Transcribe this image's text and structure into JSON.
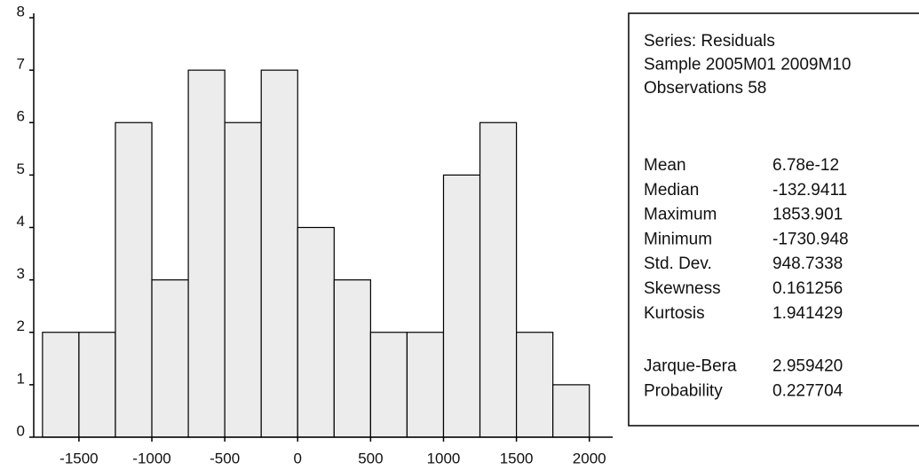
{
  "chart_data": {
    "type": "histogram",
    "bins": [
      -1750,
      -1500,
      -1250,
      -1000,
      -750,
      -500,
      -250,
      0,
      250,
      500,
      750,
      1000,
      1250,
      1500,
      1750,
      2000
    ],
    "values": [
      2,
      2,
      6,
      3,
      7,
      6,
      7,
      4,
      3,
      2,
      2,
      5,
      6,
      2,
      1
    ],
    "color": "#ececec",
    "xlim": [
      -1810,
      2160
    ],
    "xticks": [
      -1500,
      -1000,
      -500,
      0,
      500,
      1000,
      1500,
      2000
    ],
    "ylim": [
      0,
      8
    ],
    "yticks": [
      0,
      1,
      2,
      3,
      4,
      5,
      6,
      7,
      8
    ],
    "stats_header": [
      "Series: Residuals",
      "Sample 2005M01 2009M10",
      "Observations 58"
    ],
    "stats": [
      [
        [
          "Mean",
          "6.78e-12"
        ],
        [
          "Median",
          "-132.9411"
        ],
        [
          "Maximum",
          "1853.901"
        ],
        [
          "Minimum",
          "-1730.948"
        ],
        [
          "Std. Dev.",
          "948.7338"
        ],
        [
          "Skewness",
          "0.161256"
        ],
        [
          "Kurtosis",
          "1.941429"
        ]
      ],
      [
        [
          "Jarque-Bera",
          "2.959420"
        ],
        [
          "Probability",
          "0.227704"
        ]
      ]
    ]
  }
}
